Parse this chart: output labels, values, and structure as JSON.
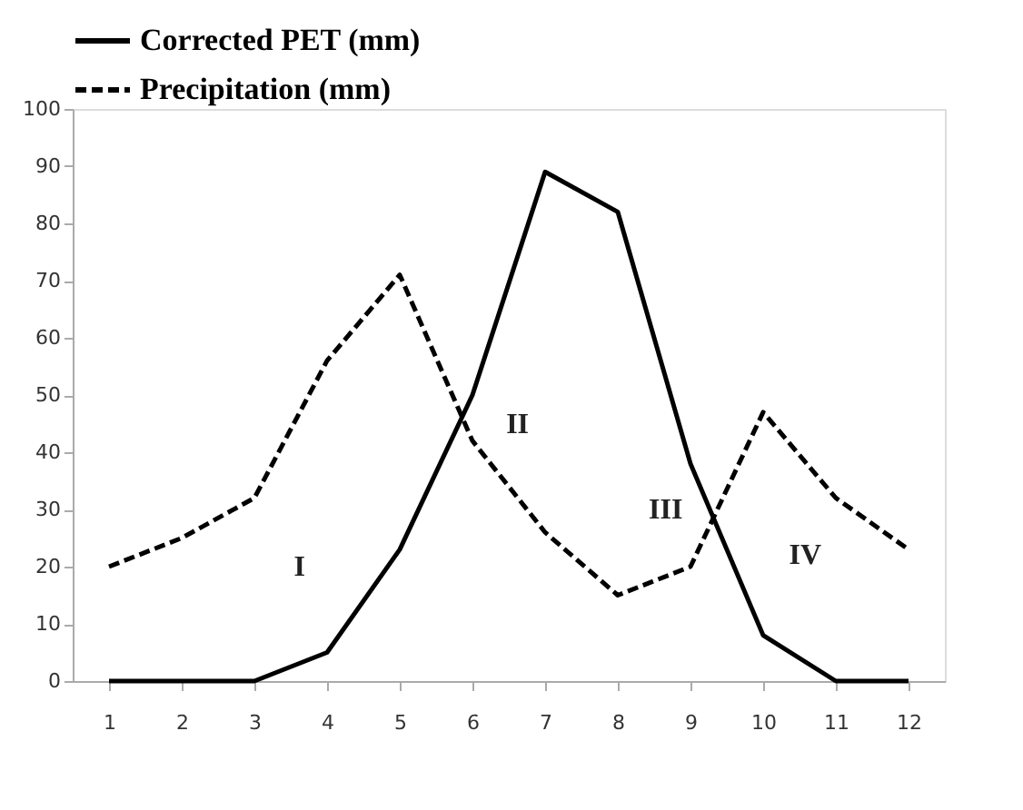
{
  "chart_data": {
    "type": "line",
    "x": [
      1,
      2,
      3,
      4,
      5,
      6,
      7,
      8,
      9,
      10,
      11,
      12
    ],
    "series": [
      {
        "name": "Corrected PET (mm)",
        "color": "#000000",
        "line_style": "solid",
        "values": [
          0,
          0,
          0,
          5,
          23,
          50,
          89,
          82,
          38,
          8,
          0,
          0
        ]
      },
      {
        "name": "Precipitation (mm)",
        "color": "#000000",
        "line_style": "dashed",
        "values": [
          20,
          25,
          32,
          56,
          71,
          42,
          26,
          15,
          20,
          47,
          32,
          23
        ]
      }
    ],
    "xlim": [
      0.5,
      12.5
    ],
    "xticks": [
      1,
      2,
      3,
      4,
      5,
      6,
      7,
      8,
      9,
      10,
      11,
      12
    ],
    "ylim": [
      0,
      100
    ],
    "yticks": [
      0,
      10,
      20,
      30,
      40,
      50,
      60,
      70,
      80,
      90,
      100
    ],
    "grid": false,
    "legend": "top",
    "marker": "none",
    "annotations": [
      "I",
      "II",
      "III",
      "IV"
    ]
  }
}
